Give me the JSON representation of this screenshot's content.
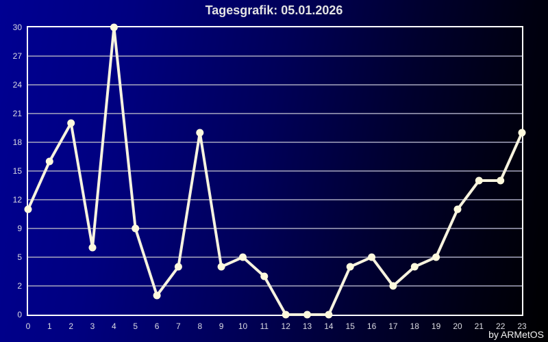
{
  "header": {
    "title": "Tagesgrafik: 05.01.2026"
  },
  "footer": {
    "credit": "by ARMetOS"
  },
  "colors": {
    "line": "#f7f3df",
    "marker": "#fdf9dd",
    "grid": "#a8a8c0",
    "plot_border": "#ffffff",
    "axis_text": "#dcdce4",
    "title_text": "#e4e4e4",
    "background_left": "#000092",
    "background_right": "#000000"
  },
  "chart_data": {
    "type": "line",
    "title": "Tagesgrafik: 05.01.2026",
    "x": [
      0,
      1,
      2,
      3,
      4,
      5,
      6,
      7,
      8,
      9,
      10,
      11,
      12,
      13,
      14,
      15,
      16,
      17,
      18,
      19,
      20,
      21,
      22,
      23
    ],
    "values": [
      11,
      16,
      20,
      7,
      30,
      9,
      2,
      5,
      19,
      5,
      6,
      4,
      0,
      0,
      0,
      5,
      6,
      3,
      5,
      6,
      11,
      14,
      14,
      19
    ],
    "x_tick_labels": [
      "0",
      "1",
      "2",
      "3",
      "4",
      "5",
      "6",
      "7",
      "8",
      "9",
      "10",
      "11",
      "12",
      "13",
      "14",
      "15",
      "16",
      "17",
      "18",
      "19",
      "20",
      "21",
      "22",
      "23"
    ],
    "y_tick_labels_displayed": [
      "30",
      "27",
      "24",
      "21",
      "18",
      "15",
      "12",
      "9",
      "5",
      "2",
      "0"
    ],
    "ylim": [
      0,
      30
    ],
    "xlim": [
      0,
      23
    ],
    "xlabel": "",
    "ylabel": "",
    "grid": true,
    "legend_position": "none"
  }
}
